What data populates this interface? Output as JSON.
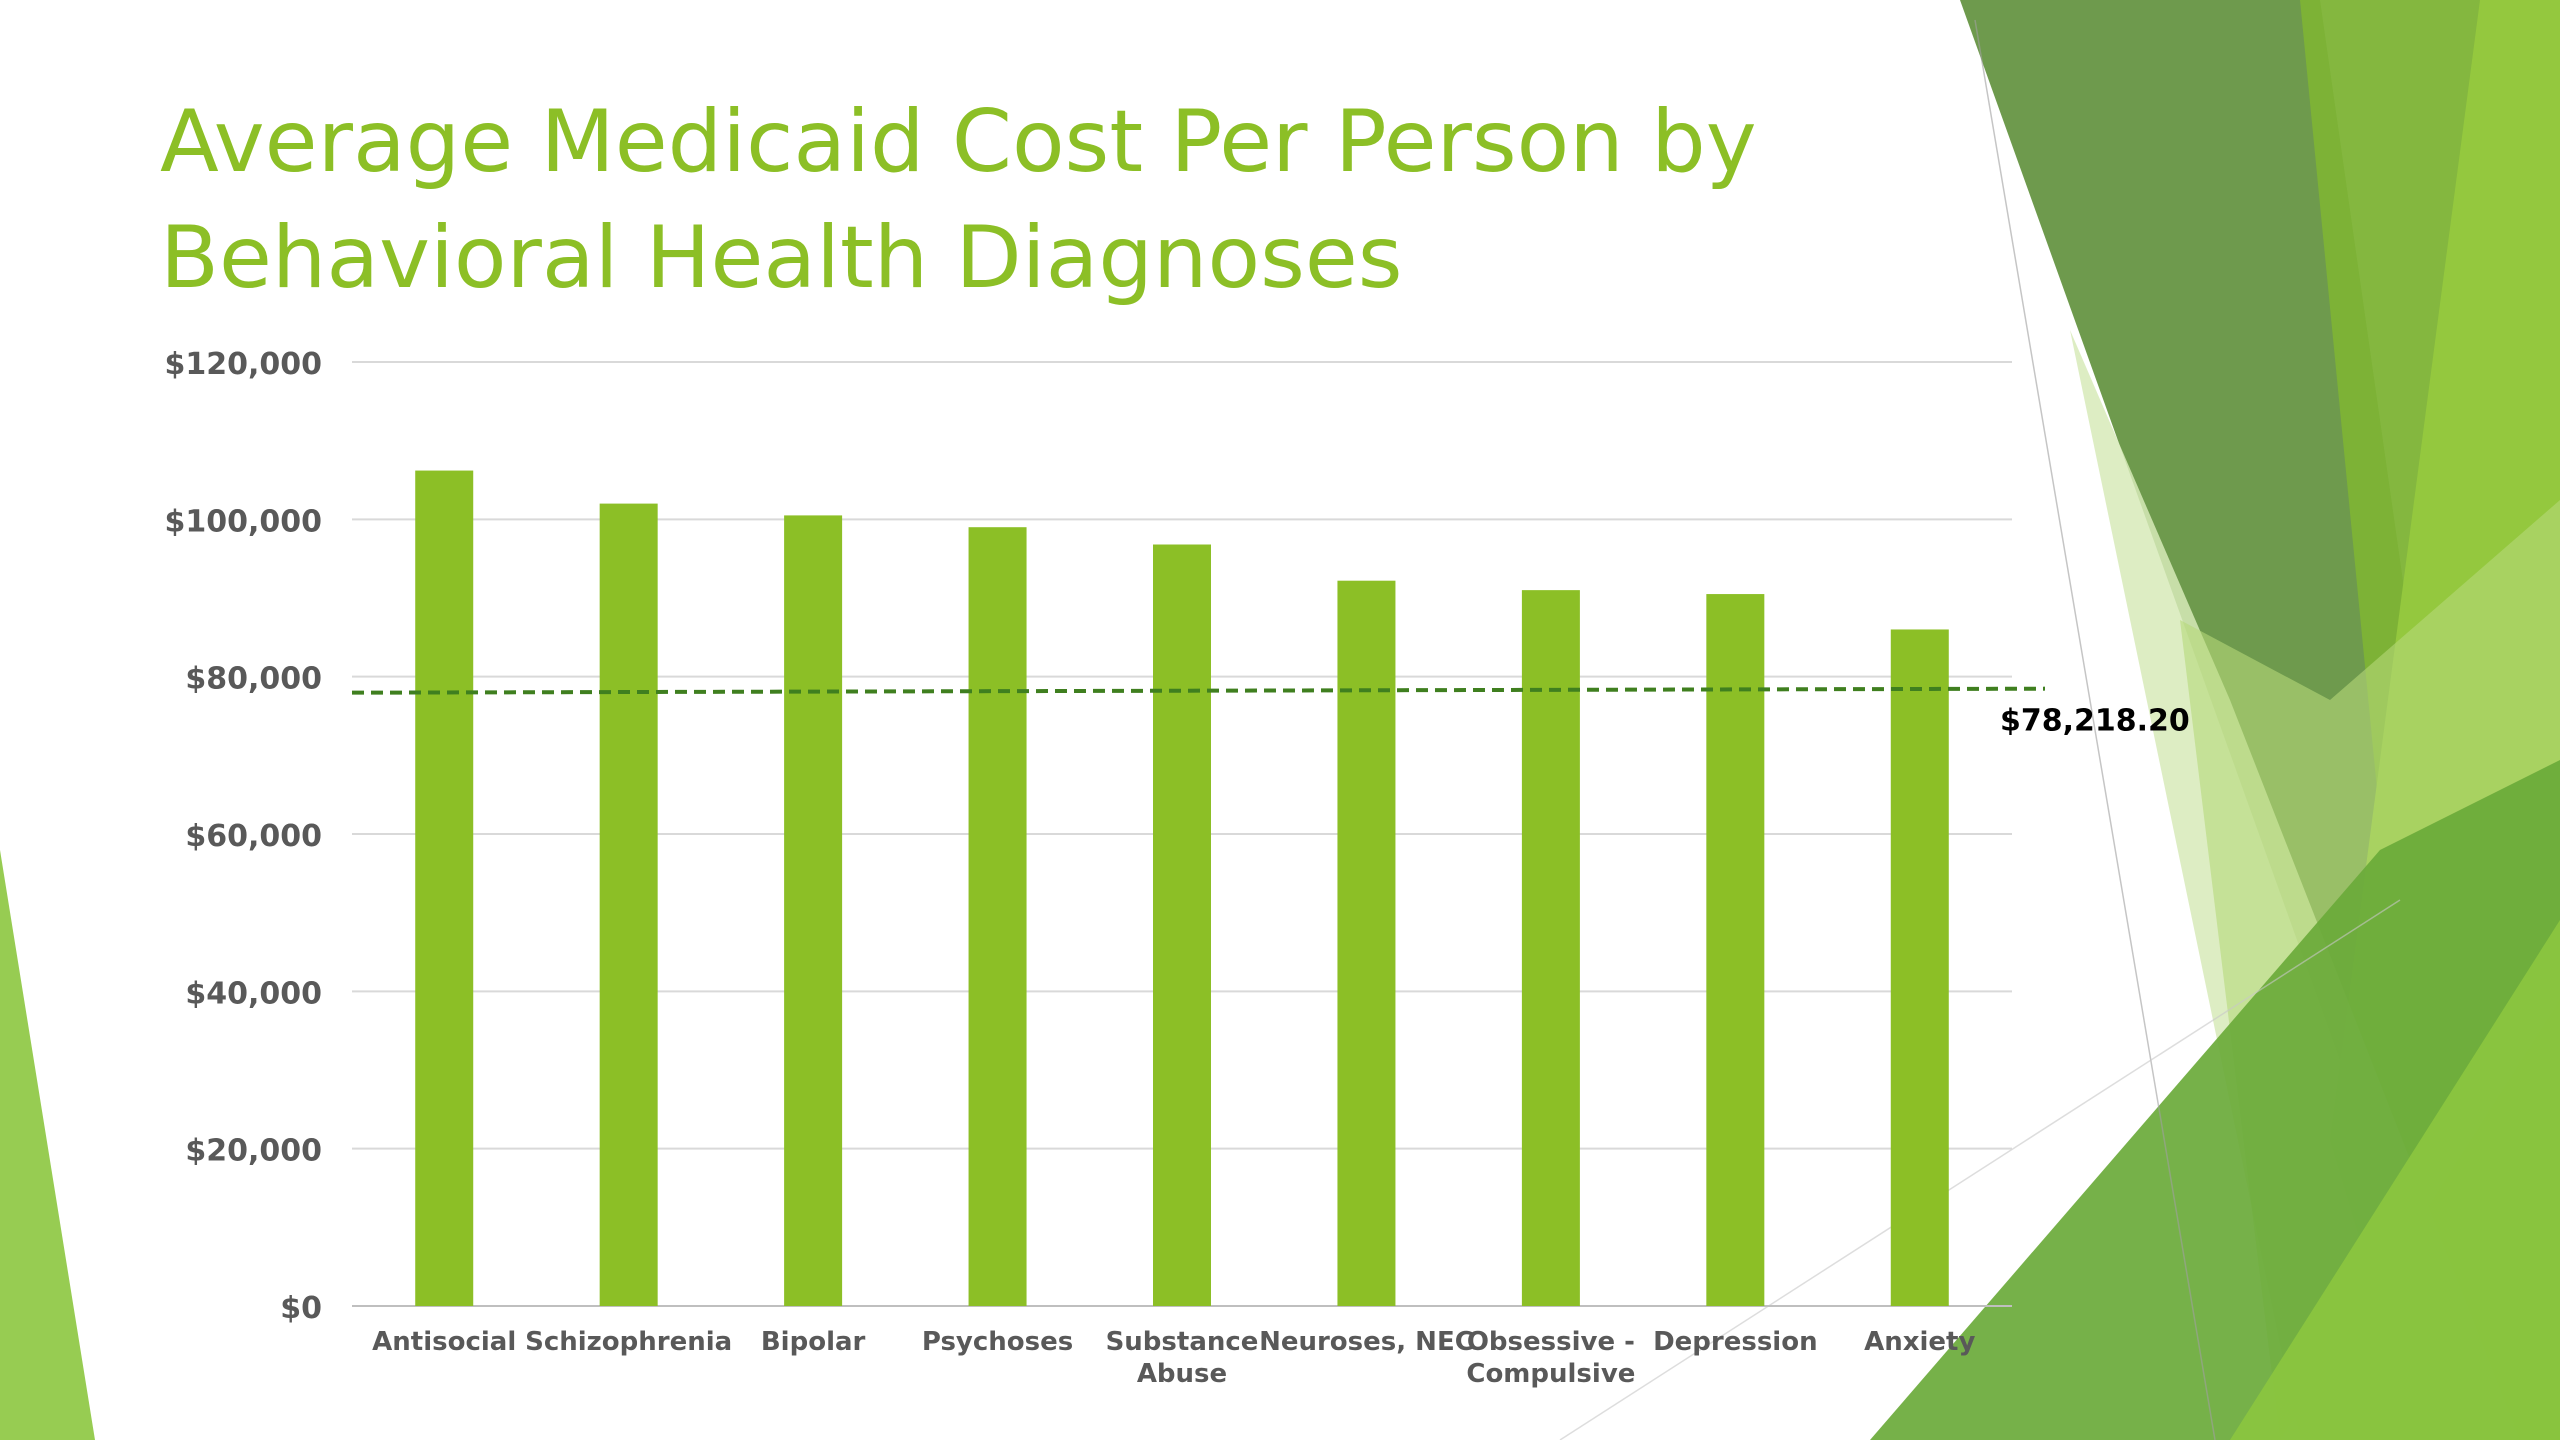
{
  "slide": {
    "title_lines": [
      "Average Medicaid Cost Per Person by",
      "Behavioral Health Diagnoses"
    ],
    "accent_color": "#8cbf26"
  },
  "chart_data": {
    "type": "bar",
    "title": "Average Medicaid Cost Per Person by Behavioral Health Diagnoses",
    "categories": [
      [
        "Antisocial"
      ],
      [
        "Schizophrenia"
      ],
      [
        "Bipolar"
      ],
      [
        "Psychoses"
      ],
      [
        "Substance",
        "Abuse"
      ],
      [
        "Neuroses, NEC"
      ],
      [
        "Obsessive -",
        "Compulsive"
      ],
      [
        "Depression"
      ],
      [
        "Anxiety"
      ]
    ],
    "values": [
      106200,
      102000,
      100500,
      99000,
      96800,
      92200,
      91000,
      90500,
      86000
    ],
    "ylim": [
      0,
      120000
    ],
    "yticks": [
      0,
      20000,
      40000,
      60000,
      80000,
      100000,
      120000
    ],
    "ytick_labels": [
      "$0",
      "$20,000",
      "$40,000",
      "$60,000",
      "$80,000",
      "$100,000",
      "$120,000"
    ],
    "reference_line": {
      "value": 78218.2,
      "label": "$78,218.20",
      "style": "dashed",
      "color": "#3f7f1f"
    },
    "bar_color": "#8cbf26",
    "grid": true,
    "legend": "none"
  }
}
